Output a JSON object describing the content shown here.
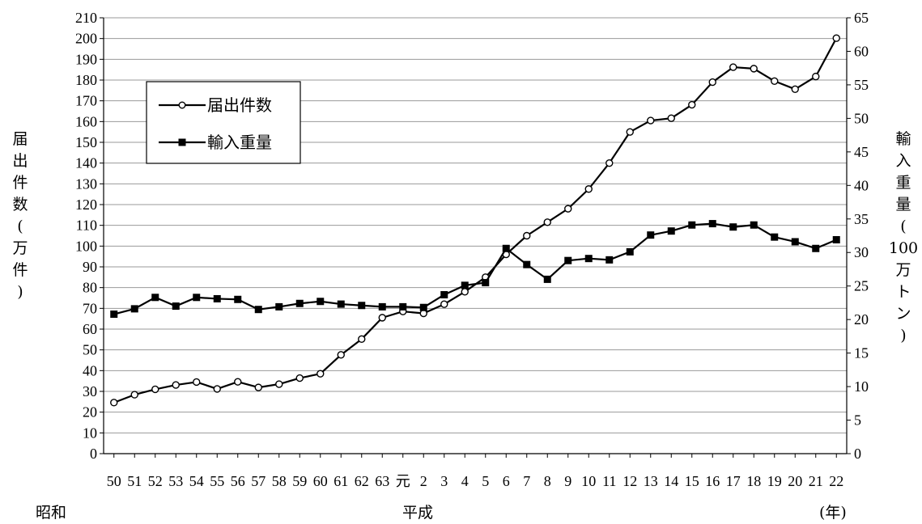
{
  "chart_data": {
    "type": "line",
    "categories": [
      "50",
      "51",
      "52",
      "53",
      "54",
      "55",
      "56",
      "57",
      "58",
      "59",
      "60",
      "61",
      "62",
      "63",
      "元",
      "2",
      "3",
      "4",
      "5",
      "6",
      "7",
      "8",
      "9",
      "10",
      "11",
      "12",
      "13",
      "14",
      "15",
      "16",
      "17",
      "18",
      "19",
      "20",
      "21",
      "22"
    ],
    "era_labels": {
      "showa": "昭和",
      "heisei": "平成",
      "year_unit": "(年)"
    },
    "series": [
      {
        "name": "届出件数",
        "axis": "left",
        "marker": "circle-open",
        "values": [
          24.6,
          28.4,
          31,
          33.1,
          34.5,
          31.2,
          34.6,
          31.9,
          33.5,
          36.4,
          38.5,
          47.6,
          55.2,
          65.5,
          68.5,
          67.6,
          72,
          78,
          85,
          96,
          105,
          111.5,
          118,
          127.5,
          140,
          155,
          160.5,
          161.6,
          168.1,
          179,
          186.2,
          185.5,
          179.5,
          175.6,
          181.7,
          200.2
        ]
      },
      {
        "name": "輸入重量",
        "axis": "right",
        "marker": "square-filled",
        "values": [
          20.8,
          21.6,
          23.3,
          22,
          23.3,
          23.1,
          23,
          21.5,
          21.9,
          22.4,
          22.7,
          22.3,
          22.1,
          21.9,
          21.9,
          21.8,
          23.7,
          25.1,
          25.5,
          30.6,
          28.2,
          26,
          28.8,
          29.1,
          28.9,
          30.1,
          32.6,
          33.2,
          34.1,
          34.3,
          33.8,
          34.1,
          32.3,
          31.6,
          30.6,
          31.9
        ]
      }
    ],
    "yLeft": {
      "label": "届出件数(万件)",
      "min": 0,
      "max": 210,
      "step": 10
    },
    "yRight": {
      "label": "輸入重量(100万トン)",
      "min": 0,
      "max": 65,
      "step": 5
    },
    "legend": {
      "position": "top-left",
      "entries": [
        "届出件数",
        "輸入重量"
      ]
    },
    "grid": true
  }
}
